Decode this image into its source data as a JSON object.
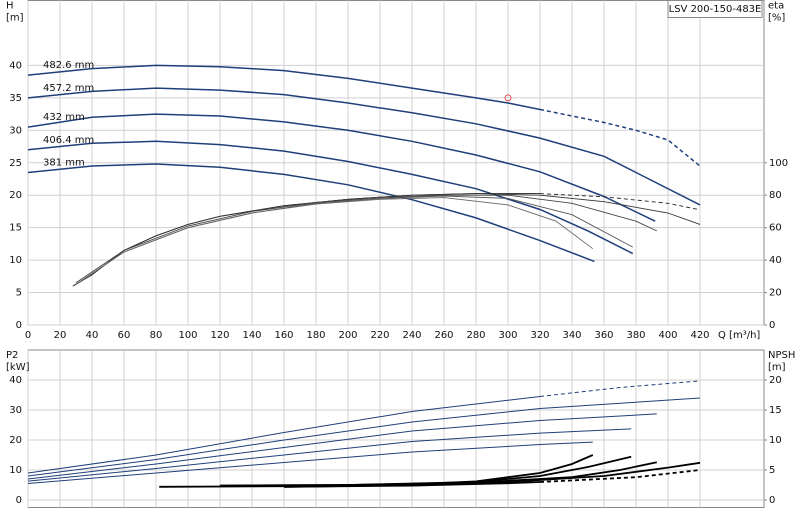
{
  "chart_data": [
    {
      "type": "line",
      "title": "LSV 200-150-483E",
      "ylabel": [
        "H",
        "[m]"
      ],
      "y2label": [
        "eta",
        "[%]"
      ],
      "xlabel": "Q [m³/h]",
      "xlim": [
        0,
        460
      ],
      "xticks": [
        0,
        20,
        40,
        60,
        80,
        100,
        120,
        140,
        160,
        180,
        200,
        220,
        240,
        260,
        280,
        300,
        320,
        340,
        360,
        380,
        400,
        420
      ],
      "ylim": [
        0,
        50
      ],
      "yticks": [
        0,
        5,
        10,
        15,
        20,
        25,
        30,
        35,
        40
      ],
      "y2lim": [
        0,
        200
      ],
      "y2ticks": [
        0,
        20,
        40,
        60,
        80,
        100
      ],
      "grid": true,
      "points": [
        {
          "x": 300,
          "y": 35,
          "color": "#e05050"
        }
      ],
      "series": [
        {
          "name": "482.6 mm",
          "color": "#1f3f7a",
          "x": [
            0,
            40,
            80,
            120,
            160,
            200,
            240,
            280,
            300,
            320
          ],
          "values": [
            38.5,
            39.5,
            40,
            39.8,
            39.2,
            38,
            36.5,
            35,
            34.2,
            33.2
          ]
        },
        {
          "color": "#1f3f7a",
          "dash": true,
          "x": [
            320,
            360,
            380,
            400,
            420
          ],
          "values": [
            33.2,
            31.2,
            30,
            28.5,
            24.5
          ]
        },
        {
          "name": "457.2 mm",
          "color": "#1f3f7a",
          "x": [
            0,
            40,
            80,
            120,
            160,
            200,
            240,
            280,
            320,
            360,
            380,
            420
          ],
          "values": [
            35,
            36,
            36.5,
            36.2,
            35.5,
            34.2,
            32.7,
            31,
            28.8,
            26,
            23.5,
            18.5
          ]
        },
        {
          "name": "432 mm",
          "color": "#1f3f7a",
          "x": [
            0,
            40,
            80,
            120,
            160,
            200,
            240,
            280,
            320,
            360,
            392
          ],
          "values": [
            30.5,
            32,
            32.5,
            32.2,
            31.3,
            30,
            28.3,
            26.2,
            23.6,
            19.8,
            16
          ]
        },
        {
          "name": "406.4 mm",
          "color": "#1f3f7a",
          "x": [
            0,
            40,
            80,
            120,
            160,
            200,
            240,
            280,
            320,
            350,
            378
          ],
          "values": [
            27,
            28,
            28.3,
            27.8,
            26.8,
            25.2,
            23.2,
            21,
            17.8,
            14.5,
            11
          ]
        },
        {
          "name": "381 mm",
          "color": "#1f3f7a",
          "x": [
            0,
            40,
            80,
            120,
            160,
            200,
            240,
            280,
            320,
            354
          ],
          "values": [
            23.5,
            24.5,
            24.8,
            24.3,
            23.2,
            21.6,
            19.3,
            16.5,
            13,
            9.8
          ]
        },
        {
          "color": "#222222",
          "axis": "y2",
          "x": [
            28,
            40,
            60,
            80,
            100,
            120,
            160,
            200,
            240,
            280,
            320
          ],
          "values": [
            24,
            31,
            46,
            55,
            62,
            67,
            73.5,
            77.5,
            80,
            81,
            81
          ]
        },
        {
          "color": "#222222",
          "axis": "y2",
          "dash": true,
          "x": [
            320,
            360,
            400,
            420
          ],
          "values": [
            81,
            79,
            75,
            71
          ]
        },
        {
          "color": "#333333",
          "axis": "y2",
          "x": [
            28,
            40,
            60,
            80,
            100,
            120,
            160,
            200,
            240,
            280,
            320,
            360,
            400,
            420
          ],
          "values": [
            24,
            31,
            46,
            55,
            62,
            67,
            73.5,
            77.5,
            80,
            81,
            80,
            76,
            69,
            62
          ]
        },
        {
          "color": "#444444",
          "axis": "y2",
          "x": [
            30,
            60,
            100,
            140,
            180,
            220,
            260,
            300,
            340,
            380,
            393
          ],
          "values": [
            26,
            46,
            61,
            70,
            75.5,
            78.5,
            80,
            80,
            75,
            64,
            58
          ]
        },
        {
          "color": "#555555",
          "axis": "y2",
          "x": [
            30,
            60,
            100,
            140,
            180,
            220,
            260,
            300,
            340,
            378
          ],
          "values": [
            25,
            45,
            60,
            69,
            75,
            78,
            79.5,
            78,
            68,
            48
          ]
        },
        {
          "color": "#666666",
          "axis": "y2",
          "x": [
            30,
            60,
            100,
            140,
            180,
            220,
            260,
            300,
            330,
            353
          ],
          "values": [
            25,
            45,
            60,
            69,
            74.5,
            77.5,
            78.5,
            74,
            64,
            47
          ]
        }
      ]
    },
    {
      "type": "line",
      "ylabel": [
        "P2",
        "[kW]"
      ],
      "y2label": [
        "NPSH",
        "[m]"
      ],
      "ylim": [
        -2.5,
        50
      ],
      "yticks": [
        0,
        10,
        20,
        30,
        40
      ],
      "y2lim": [
        -1.25,
        25
      ],
      "y2ticks": [
        0,
        5,
        10,
        15,
        20
      ],
      "grid": true,
      "series": [
        {
          "color": "#1f3f7a",
          "x": [
            0,
            80,
            160,
            240,
            320
          ],
          "values": [
            9,
            15,
            22.5,
            29.5,
            34.5
          ]
        },
        {
          "color": "#1f3f7a",
          "dash": true,
          "x": [
            320,
            370,
            420
          ],
          "values": [
            34.5,
            37.5,
            39.7
          ]
        },
        {
          "color": "#1f3f7a",
          "x": [
            0,
            80,
            160,
            240,
            320,
            420
          ],
          "values": [
            8,
            13.5,
            20,
            26,
            30.5,
            34
          ]
        },
        {
          "color": "#1f3f7a",
          "x": [
            0,
            80,
            160,
            240,
            320,
            393
          ],
          "values": [
            7,
            12,
            17.5,
            23,
            26.5,
            28.7
          ]
        },
        {
          "color": "#1f3f7a",
          "x": [
            0,
            80,
            160,
            240,
            320,
            377
          ],
          "values": [
            6.3,
            10.5,
            15,
            19.5,
            22.3,
            23.7
          ]
        },
        {
          "color": "#1f3f7a",
          "x": [
            0,
            80,
            160,
            240,
            320,
            353
          ],
          "values": [
            5.5,
            9,
            12.5,
            16,
            18.5,
            19.3
          ]
        },
        {
          "color": "#000000",
          "axis": "y2",
          "x": [
            82,
            160,
            240,
            280,
            320,
            340,
            353
          ],
          "values": [
            2.2,
            2.3,
            2.6,
            3.1,
            4.5,
            6,
            7.5
          ]
        },
        {
          "color": "#000000",
          "axis": "y2",
          "x": [
            120,
            200,
            280,
            320,
            350,
            377
          ],
          "values": [
            2.4,
            2.5,
            3,
            4,
            5.5,
            7.2
          ]
        },
        {
          "color": "#000000",
          "axis": "y2",
          "x": [
            120,
            200,
            280,
            340,
            370,
            393
          ],
          "values": [
            2.4,
            2.5,
            2.9,
            3.8,
            5,
            6.3
          ]
        },
        {
          "color": "#000000",
          "axis": "y2",
          "x": [
            160,
            240,
            300,
            360,
            400,
            420
          ],
          "values": [
            2.2,
            2.5,
            3,
            4,
            5.4,
            6.2
          ]
        },
        {
          "color": "#000000",
          "axis": "y2",
          "x": [
            160,
            240,
            300,
            320
          ],
          "values": [
            2.2,
            2.4,
            2.8,
            3
          ]
        },
        {
          "color": "#000000",
          "axis": "y2",
          "dash": true,
          "x": [
            320,
            380,
            420
          ],
          "values": [
            3,
            3.8,
            5
          ]
        }
      ]
    }
  ]
}
